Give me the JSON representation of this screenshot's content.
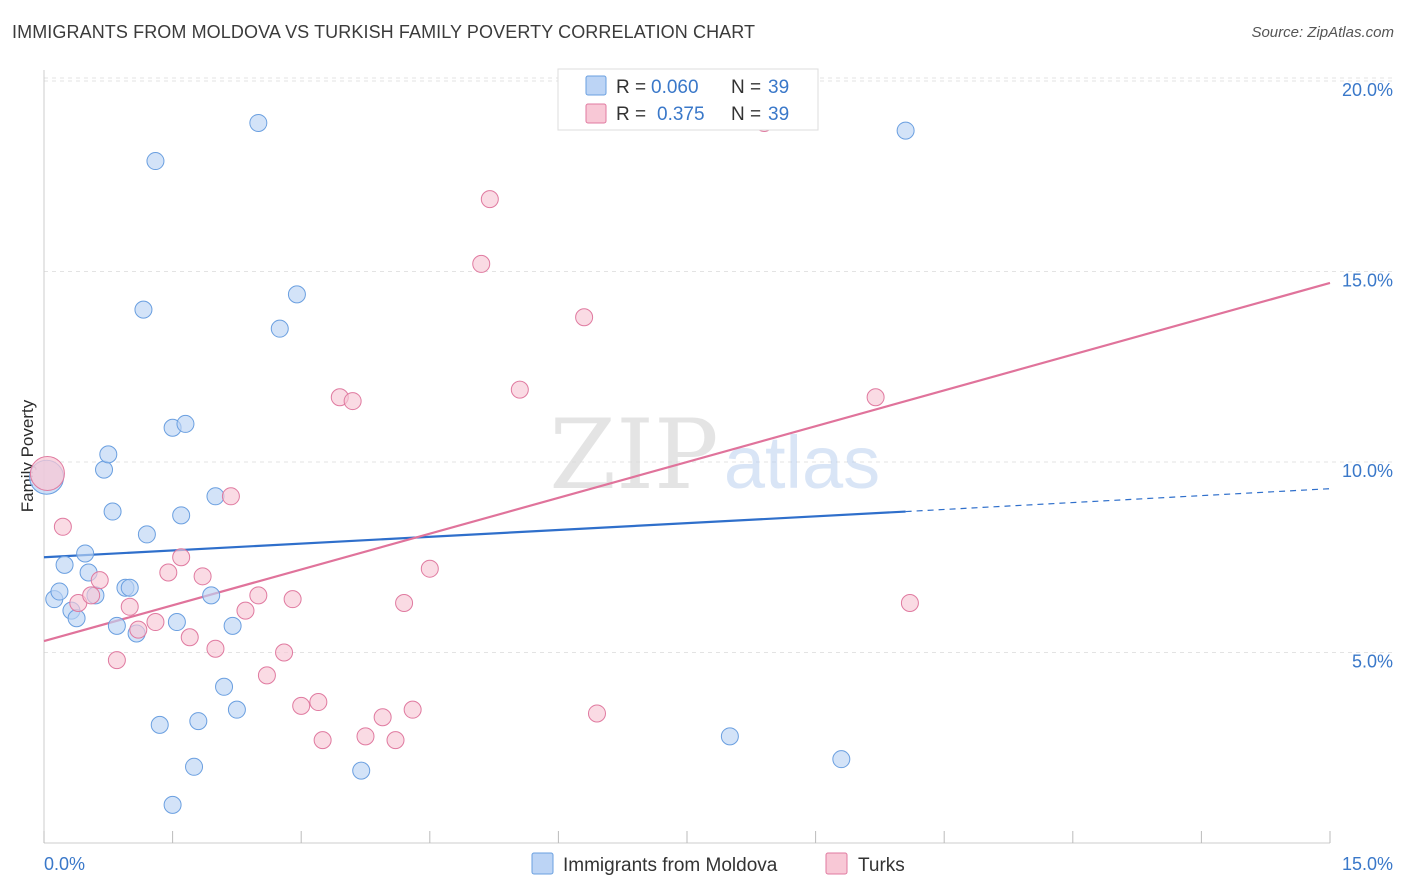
{
  "header": {
    "title": "IMMIGRANTS FROM MOLDOVA VS TURKISH FAMILY POVERTY CORRELATION CHART",
    "source": "Source: ZipAtlas.com"
  },
  "watermark": {
    "zip": "ZIP",
    "atlas": "atlas"
  },
  "stats": {
    "moldova": {
      "r_label": "R =",
      "r": "0.060",
      "n_label": "N =",
      "n": "39"
    },
    "turks": {
      "r_label": "R =",
      "r": "0.375",
      "n_label": "N =",
      "n": "39"
    }
  },
  "chart_data": {
    "type": "scatter",
    "title": "IMMIGRANTS FROM MOLDOVA VS TURKISH FAMILY POVERTY CORRELATION CHART",
    "xlabel": "",
    "ylabel": "Family Poverty",
    "xlim": [
      0,
      15
    ],
    "ylim": [
      0,
      20.5
    ],
    "x_tick_labels": [
      {
        "value": 0,
        "label": "0.0%"
      },
      {
        "value": 15,
        "label": "15.0%"
      }
    ],
    "y_ticks": [
      {
        "value": 5,
        "label": "5.0%"
      },
      {
        "value": 10,
        "label": "10.0%"
      },
      {
        "value": 15,
        "label": "15.0%"
      },
      {
        "value": 20,
        "label": "20.0%"
      }
    ],
    "grid": true,
    "legend_position": "bottom-center",
    "series": [
      {
        "name": "Immigrants from Moldova",
        "color": "#6a9fe0",
        "fill": "#bcd4f5",
        "points": [
          [
            0.03,
            9.6
          ],
          [
            0.12,
            6.4
          ],
          [
            0.18,
            6.6
          ],
          [
            0.24,
            7.3
          ],
          [
            0.32,
            6.1
          ],
          [
            0.38,
            5.9
          ],
          [
            0.48,
            7.6
          ],
          [
            0.52,
            7.1
          ],
          [
            0.6,
            6.5
          ],
          [
            0.7,
            9.8
          ],
          [
            0.75,
            10.2
          ],
          [
            0.8,
            8.7
          ],
          [
            0.85,
            5.7
          ],
          [
            0.95,
            6.7
          ],
          [
            1.0,
            6.7
          ],
          [
            1.08,
            5.5
          ],
          [
            1.16,
            14.0
          ],
          [
            1.2,
            8.1
          ],
          [
            1.3,
            17.9
          ],
          [
            1.35,
            3.1
          ],
          [
            1.5,
            10.9
          ],
          [
            1.5,
            1.0
          ],
          [
            1.55,
            5.8
          ],
          [
            1.6,
            8.6
          ],
          [
            1.65,
            11.0
          ],
          [
            1.75,
            2.0
          ],
          [
            1.8,
            3.2
          ],
          [
            1.95,
            6.5
          ],
          [
            2.0,
            9.1
          ],
          [
            2.1,
            4.1
          ],
          [
            2.2,
            5.7
          ],
          [
            2.25,
            3.5
          ],
          [
            2.5,
            18.9
          ],
          [
            2.75,
            13.5
          ],
          [
            2.95,
            14.4
          ],
          [
            3.7,
            1.9
          ],
          [
            8.0,
            2.8
          ],
          [
            9.3,
            2.2
          ],
          [
            10.05,
            18.7
          ]
        ],
        "trend": {
          "x": [
            0,
            10.05
          ],
          "y": [
            7.5,
            8.7
          ],
          "dashed_extension": {
            "x": [
              10.05,
              15
            ],
            "y": [
              8.7,
              9.3
            ]
          }
        }
      },
      {
        "name": "Turks",
        "color": "#e07aa0",
        "fill": "#f8c8d6",
        "points": [
          [
            0.04,
            9.7
          ],
          [
            0.22,
            8.3
          ],
          [
            0.4,
            6.3
          ],
          [
            0.55,
            6.5
          ],
          [
            0.65,
            6.9
          ],
          [
            0.85,
            4.8
          ],
          [
            1.0,
            6.2
          ],
          [
            1.1,
            5.6
          ],
          [
            1.3,
            5.8
          ],
          [
            1.45,
            7.1
          ],
          [
            1.6,
            7.5
          ],
          [
            1.7,
            5.4
          ],
          [
            1.85,
            7.0
          ],
          [
            2.0,
            5.1
          ],
          [
            2.18,
            9.1
          ],
          [
            2.35,
            6.1
          ],
          [
            2.5,
            6.5
          ],
          [
            2.6,
            4.4
          ],
          [
            2.8,
            5.0
          ],
          [
            2.9,
            6.4
          ],
          [
            3.0,
            3.6
          ],
          [
            3.2,
            3.7
          ],
          [
            3.25,
            2.7
          ],
          [
            3.45,
            11.7
          ],
          [
            3.6,
            11.6
          ],
          [
            3.75,
            2.8
          ],
          [
            3.95,
            3.3
          ],
          [
            4.1,
            2.7
          ],
          [
            4.2,
            6.3
          ],
          [
            4.3,
            3.5
          ],
          [
            4.5,
            7.2
          ],
          [
            5.1,
            15.2
          ],
          [
            5.2,
            16.9
          ],
          [
            5.55,
            11.9
          ],
          [
            6.3,
            13.8
          ],
          [
            6.45,
            3.4
          ],
          [
            8.4,
            18.9
          ],
          [
            9.7,
            11.7
          ],
          [
            10.1,
            6.3
          ]
        ],
        "trend": {
          "x": [
            0,
            15
          ],
          "y": [
            5.3,
            14.7
          ]
        }
      }
    ]
  }
}
